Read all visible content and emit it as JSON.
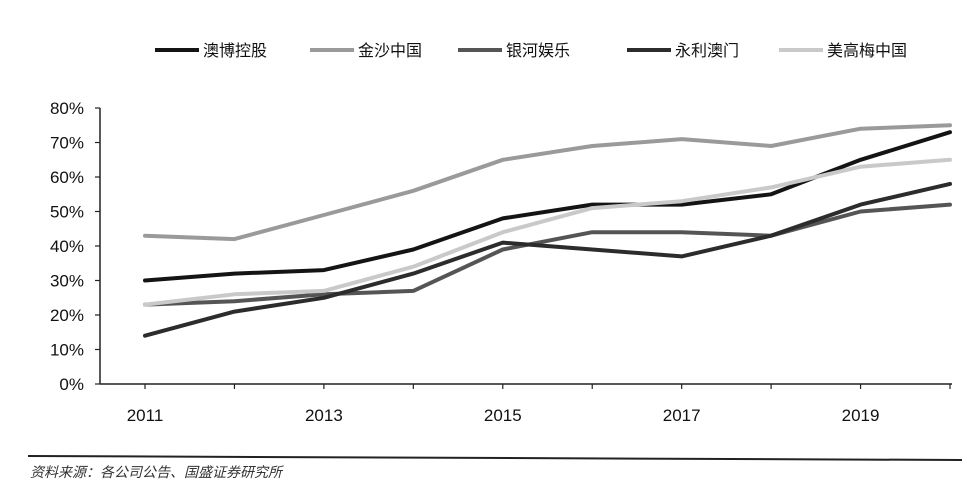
{
  "chart_data": {
    "type": "line",
    "title": "",
    "xlabel": "",
    "ylabel": "",
    "x": [
      2011,
      2012,
      2013,
      2014,
      2015,
      2016,
      2017,
      2018,
      2019,
      2020
    ],
    "x_tick_labels": [
      "2011",
      "2013",
      "2015",
      "2017",
      "2019"
    ],
    "y_tick_labels": [
      "0%",
      "10%",
      "20%",
      "30%",
      "40%",
      "50%",
      "60%",
      "70%",
      "80%"
    ],
    "ylim": [
      0,
      0.8
    ],
    "grid": false,
    "legend_position": "top",
    "series": [
      {
        "name": "澳博控股",
        "color": "#141414",
        "values": [
          0.3,
          0.32,
          0.33,
          0.39,
          0.48,
          0.52,
          0.52,
          0.55,
          0.65,
          0.73
        ]
      },
      {
        "name": "金沙中国",
        "color": "#9a9a9a",
        "values": [
          0.43,
          0.42,
          0.49,
          0.56,
          0.65,
          0.69,
          0.71,
          0.69,
          0.74,
          0.75
        ]
      },
      {
        "name": "银河娱乐",
        "color": "#555555",
        "values": [
          0.23,
          0.24,
          0.26,
          0.27,
          0.39,
          0.44,
          0.44,
          0.43,
          0.5,
          0.52
        ]
      },
      {
        "name": "永利澳门",
        "color": "#2c2c2c",
        "values": [
          0.14,
          0.21,
          0.25,
          0.32,
          0.41,
          0.39,
          0.37,
          0.43,
          0.52,
          0.58
        ]
      },
      {
        "name": "美高梅中国",
        "color": "#c9c9c9",
        "values": [
          0.23,
          0.26,
          0.27,
          0.34,
          0.44,
          0.51,
          0.53,
          0.57,
          0.63,
          0.65
        ]
      }
    ]
  },
  "source_note": "资料来源：各公司公告、国盛证券研究所"
}
